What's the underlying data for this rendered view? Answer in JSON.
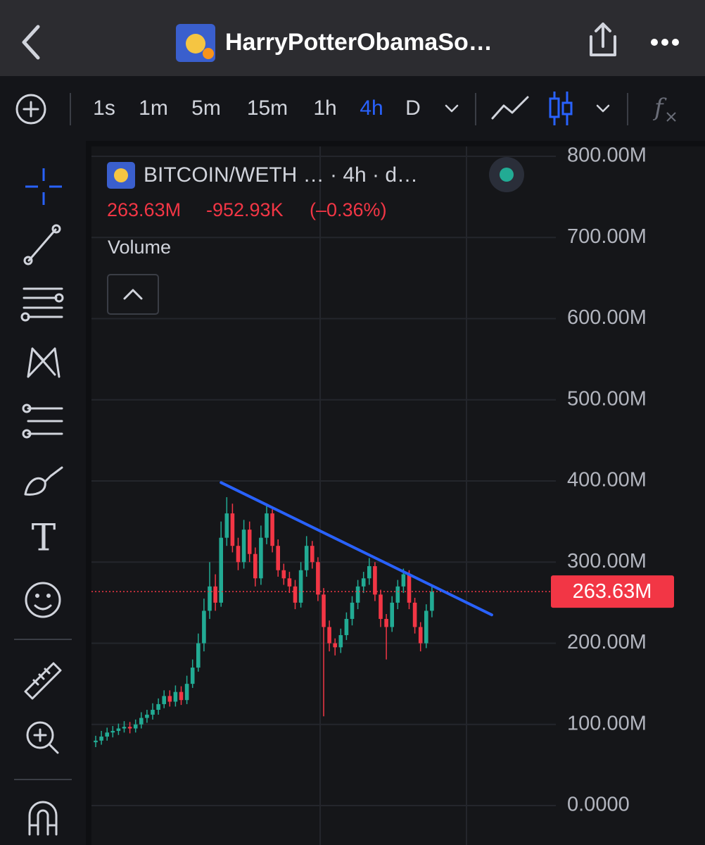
{
  "header": {
    "title": "HarryPotterObamaSo…"
  },
  "toolbar": {
    "timeframes": [
      "1s",
      "1m",
      "5m",
      "15m",
      "1h",
      "4h",
      "D"
    ],
    "active": "4h"
  },
  "chart": {
    "type": "candlestick",
    "legend": "BITCOIN/WETH … · 4h · d…",
    "price": "263.63M",
    "change": "-952.93K",
    "change_percent": "(–0.36%)",
    "study": "Volume",
    "ylim": [
      0,
      800
    ],
    "yticks": [
      {
        "value": 800,
        "label": "800.00M"
      },
      {
        "value": 700,
        "label": "700.00M"
      },
      {
        "value": 600,
        "label": "600.00M"
      },
      {
        "value": 500,
        "label": "500.00M"
      },
      {
        "value": 400,
        "label": "400.00M"
      },
      {
        "value": 300,
        "label": "300.00M"
      },
      {
        "value": 200,
        "label": "200.00M"
      },
      {
        "value": 100,
        "label": "100.00M"
      },
      {
        "value": 0,
        "label": "0.0000"
      }
    ],
    "up_color": "#22ab94",
    "down_color": "#f23645",
    "open": [
      78,
      80,
      85,
      90,
      92,
      95,
      97,
      95,
      100,
      108,
      112,
      118,
      125,
      135,
      128,
      140,
      130,
      150,
      170,
      200,
      240,
      270,
      250,
      330,
      360,
      320,
      300,
      340,
      310,
      280,
      330,
      360,
      320,
      290,
      280,
      270,
      250,
      290,
      320,
      300,
      260,
      220,
      200,
      195,
      210,
      230,
      250,
      270,
      280,
      295,
      260,
      230,
      220,
      250,
      270,
      285,
      250,
      220,
      200,
      240
    ],
    "high": [
      86,
      92,
      96,
      98,
      101,
      104,
      103,
      106,
      115,
      118,
      126,
      132,
      142,
      142,
      148,
      147,
      160,
      180,
      212,
      255,
      300,
      285,
      350,
      380,
      372,
      330,
      352,
      350,
      318,
      345,
      370,
      365,
      328,
      298,
      288,
      278,
      300,
      332,
      326,
      306,
      268,
      228,
      206,
      218,
      238,
      258,
      278,
      288,
      305,
      300,
      266,
      236,
      258,
      278,
      292,
      290,
      256,
      226,
      248,
      270
    ],
    "low": [
      72,
      75,
      80,
      84,
      87,
      90,
      89,
      90,
      95,
      102,
      106,
      112,
      120,
      122,
      122,
      124,
      125,
      145,
      165,
      190,
      230,
      240,
      245,
      320,
      312,
      290,
      292,
      300,
      270,
      272,
      322,
      312,
      282,
      272,
      262,
      242,
      244,
      282,
      292,
      252,
      110,
      190,
      185,
      188,
      204,
      222,
      242,
      262,
      272,
      252,
      220,
      180,
      214,
      242,
      262,
      242,
      212,
      190,
      194,
      232
    ],
    "close": [
      80,
      85,
      90,
      92,
      95,
      97,
      95,
      100,
      108,
      112,
      118,
      125,
      135,
      128,
      140,
      130,
      150,
      170,
      200,
      240,
      270,
      250,
      330,
      360,
      320,
      300,
      340,
      310,
      280,
      330,
      360,
      320,
      290,
      280,
      270,
      250,
      290,
      320,
      300,
      260,
      220,
      200,
      195,
      210,
      230,
      250,
      270,
      280,
      295,
      260,
      230,
      220,
      250,
      270,
      285,
      250,
      220,
      200,
      240,
      263.63
    ],
    "price_label": "263.63M",
    "trendline": {
      "color": "#2962ff",
      "x": [
        22,
        69.5
      ],
      "y": [
        398,
        235
      ]
    }
  }
}
